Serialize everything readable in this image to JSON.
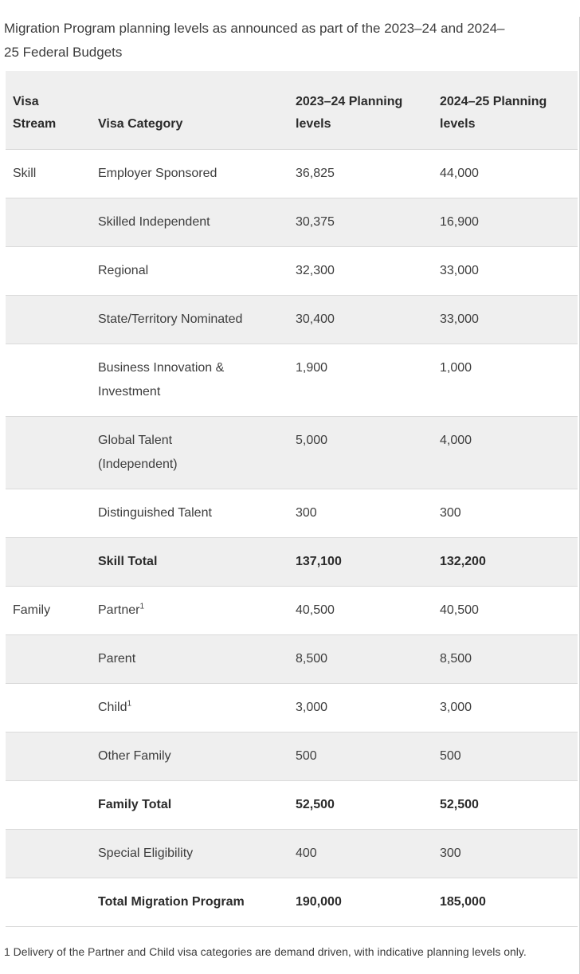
{
  "title": "Migration Program planning levels as announced as part of the 2023–24 and 2024–\n25 Federal Budgets",
  "table": {
    "columns": [
      "Visa Stream",
      "Visa Category",
      "2023–24 Planning levels",
      "2024–25 Planning levels"
    ],
    "rows": [
      {
        "stream": "Skill",
        "category": "Employer Sponsored",
        "sup": "",
        "v2023": "36,825",
        "v2024": "44,000",
        "bold": false
      },
      {
        "stream": "",
        "category": "Skilled Independent",
        "sup": "",
        "v2023": "30,375",
        "v2024": "16,900",
        "bold": false
      },
      {
        "stream": "",
        "category": "Regional",
        "sup": "",
        "v2023": "32,300",
        "v2024": "33,000",
        "bold": false
      },
      {
        "stream": "",
        "category": "State/Territory Nominated",
        "sup": "",
        "v2023": "30,400",
        "v2024": "33,000",
        "bold": false
      },
      {
        "stream": "",
        "category": "Business Innovation &\nInvestment",
        "sup": "",
        "v2023": "1,900",
        "v2024": "1,000",
        "bold": false
      },
      {
        "stream": "",
        "category": "Global Talent\n(Independent)",
        "sup": "",
        "v2023": "5,000",
        "v2024": "4,000",
        "bold": false
      },
      {
        "stream": "",
        "category": "Distinguished Talent",
        "sup": "",
        "v2023": "300",
        "v2024": "300",
        "bold": false
      },
      {
        "stream": "",
        "category": "Skill Total",
        "sup": "",
        "v2023": "137,100",
        "v2024": "132,200",
        "bold": true
      },
      {
        "stream": "Family",
        "category": "Partner",
        "sup": "1",
        "v2023": "40,500",
        "v2024": "40,500",
        "bold": false
      },
      {
        "stream": "",
        "category": "Parent",
        "sup": "",
        "v2023": "8,500",
        "v2024": "8,500",
        "bold": false
      },
      {
        "stream": "",
        "category": "Child",
        "sup": "1",
        "v2023": "3,000",
        "v2024": "3,000",
        "bold": false
      },
      {
        "stream": "",
        "category": "Other Family",
        "sup": "",
        "v2023": "500",
        "v2024": "500",
        "bold": false
      },
      {
        "stream": "",
        "category": "Family Total",
        "sup": "",
        "v2023": "52,500",
        "v2024": "52,500",
        "bold": true
      },
      {
        "stream": "",
        "category": "Special Eligibility",
        "sup": "",
        "v2023": "400",
        "v2024": "300",
        "bold": false
      },
      {
        "stream": "",
        "category": "Total Migration Program",
        "sup": "",
        "v2023": "190,000",
        "v2024": "185,000",
        "bold": true
      }
    ]
  },
  "footnote": "1 Delivery of the Partner and Child visa categories are demand driven, with indicative planning levels only.",
  "colors": {
    "row_alt_bg": "#efefef",
    "header_bg": "#efefef",
    "row_border": "#dadada",
    "text": "#3d3d3d",
    "text_strong": "#2b2b2b",
    "right_edge_line": "#d0d0d0",
    "bottom_strip": "#ededed"
  }
}
